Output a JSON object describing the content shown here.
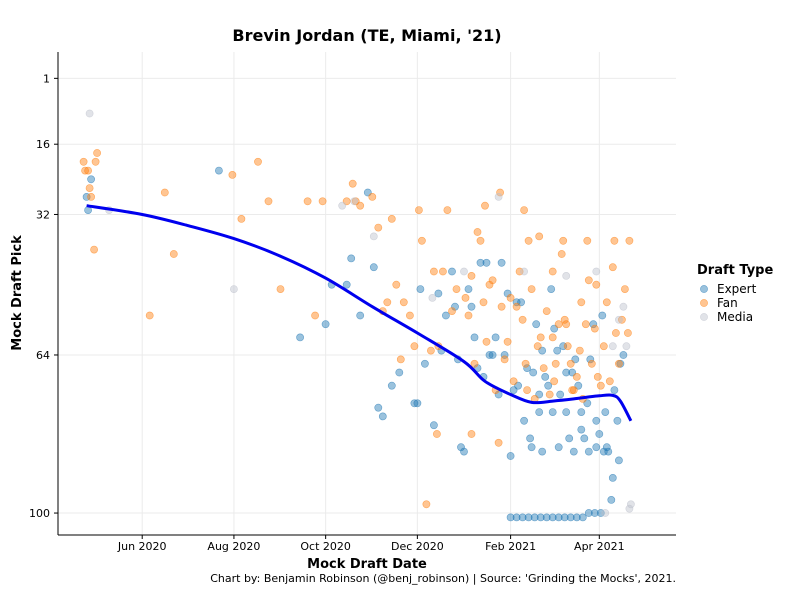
{
  "chart_data": {
    "type": "scatter",
    "title": "Brevin Jordan (TE, Miami, '21)",
    "xlabel": "Mock Draft Date",
    "ylabel": "Mock Draft Pick",
    "caption": "Chart by: Benjamin Robinson (@benj_robinson) | Source: 'Grinding the Mocks', 2021.",
    "xlim": [
      "2020-04-06",
      "2021-05-22"
    ],
    "ylim": [
      105,
      -5
    ],
    "y_ticks": [
      1,
      16,
      32,
      64,
      100
    ],
    "x_ticks": [
      {
        "date": "2020-06-01",
        "label": "Jun 2020"
      },
      {
        "date": "2020-08-01",
        "label": "Aug 2020"
      },
      {
        "date": "2020-10-01",
        "label": "Oct 2020"
      },
      {
        "date": "2020-12-01",
        "label": "Dec 2020"
      },
      {
        "date": "2021-02-01",
        "label": "Feb 2021"
      },
      {
        "date": "2021-04-01",
        "label": "Apr 2021"
      }
    ],
    "grid": true,
    "legend": {
      "title": "Draft Type",
      "position": "right"
    },
    "series": [
      {
        "name": "Expert",
        "color": "#1f77b4",
        "points": [
          [
            "2020-04-25",
            28
          ],
          [
            "2020-04-26",
            31
          ],
          [
            "2020-04-28",
            24
          ],
          [
            "2020-07-22",
            22
          ],
          [
            "2020-09-14",
            60
          ],
          [
            "2020-10-01",
            57
          ],
          [
            "2020-10-05",
            48
          ],
          [
            "2020-10-15",
            48
          ],
          [
            "2020-10-18",
            42
          ],
          [
            "2020-10-24",
            55
          ],
          [
            "2020-10-29",
            27
          ],
          [
            "2020-11-02",
            44
          ],
          [
            "2020-11-05",
            76
          ],
          [
            "2020-11-08",
            78
          ],
          [
            "2020-11-14",
            71
          ],
          [
            "2020-11-19",
            68
          ],
          [
            "2020-11-29",
            75
          ],
          [
            "2020-12-01",
            75
          ],
          [
            "2020-12-03",
            49
          ],
          [
            "2020-12-06",
            66
          ],
          [
            "2020-12-12",
            80
          ],
          [
            "2020-12-15",
            50
          ],
          [
            "2020-12-17",
            63
          ],
          [
            "2020-12-20",
            55
          ],
          [
            "2020-12-24",
            45
          ],
          [
            "2020-12-26",
            53
          ],
          [
            "2020-12-28",
            65
          ],
          [
            "2020-12-30",
            85
          ],
          [
            "2021-01-01",
            86
          ],
          [
            "2021-01-04",
            49
          ],
          [
            "2021-01-06",
            53
          ],
          [
            "2021-01-08",
            60
          ],
          [
            "2021-01-10",
            67
          ],
          [
            "2021-01-12",
            43
          ],
          [
            "2021-01-14",
            69
          ],
          [
            "2021-01-16",
            43
          ],
          [
            "2021-01-18",
            64
          ],
          [
            "2021-01-20",
            64
          ],
          [
            "2021-01-22",
            60
          ],
          [
            "2021-01-24",
            73
          ],
          [
            "2021-01-26",
            43
          ],
          [
            "2021-01-28",
            64
          ],
          [
            "2021-01-30",
            50
          ],
          [
            "2021-02-01",
            87
          ],
          [
            "2021-02-03",
            72
          ],
          [
            "2021-02-05",
            52
          ],
          [
            "2021-02-06",
            71
          ],
          [
            "2021-02-08",
            52
          ],
          [
            "2021-02-10",
            79
          ],
          [
            "2021-02-12",
            67
          ],
          [
            "2021-02-14",
            83
          ],
          [
            "2021-02-16",
            68
          ],
          [
            "2021-02-18",
            57
          ],
          [
            "2021-02-20",
            73
          ],
          [
            "2021-02-22",
            63
          ],
          [
            "2021-02-24",
            69
          ],
          [
            "2021-02-26",
            71
          ],
          [
            "2021-02-28",
            49
          ],
          [
            "2021-03-02",
            58
          ],
          [
            "2021-03-04",
            63
          ],
          [
            "2021-03-06",
            73
          ],
          [
            "2021-03-08",
            62
          ],
          [
            "2021-03-10",
            68
          ],
          [
            "2021-03-12",
            83
          ],
          [
            "2021-03-14",
            68
          ],
          [
            "2021-03-16",
            65
          ],
          [
            "2021-03-18",
            71
          ],
          [
            "2021-03-20",
            81
          ],
          [
            "2021-03-22",
            83
          ],
          [
            "2021-03-24",
            75
          ],
          [
            "2021-03-26",
            65
          ],
          [
            "2021-03-28",
            57
          ],
          [
            "2021-03-30",
            79
          ],
          [
            "2021-04-01",
            82
          ],
          [
            "2021-04-03",
            55
          ],
          [
            "2021-04-05",
            77
          ],
          [
            "2021-04-07",
            86
          ],
          [
            "2021-04-09",
            97
          ],
          [
            "2021-04-11",
            72
          ],
          [
            "2021-04-13",
            79
          ],
          [
            "2021-04-15",
            66
          ],
          [
            "2021-04-17",
            64
          ],
          [
            "2021-02-01",
            101
          ],
          [
            "2021-02-05",
            101
          ],
          [
            "2021-02-09",
            101
          ],
          [
            "2021-02-13",
            101
          ],
          [
            "2021-02-17",
            101
          ],
          [
            "2021-02-21",
            101
          ],
          [
            "2021-02-25",
            101
          ],
          [
            "2021-03-01",
            101
          ],
          [
            "2021-03-05",
            101
          ],
          [
            "2021-03-09",
            101
          ],
          [
            "2021-03-13",
            101
          ],
          [
            "2021-03-17",
            101
          ],
          [
            "2021-03-21",
            101
          ],
          [
            "2021-03-25",
            100
          ],
          [
            "2021-03-29",
            100
          ],
          [
            "2021-04-02",
            100
          ],
          [
            "2021-04-06",
            85
          ],
          [
            "2021-04-10",
            92
          ],
          [
            "2021-02-20",
            77
          ],
          [
            "2021-03-01",
            77
          ],
          [
            "2021-03-10",
            77
          ],
          [
            "2021-03-20",
            77
          ],
          [
            "2021-03-30",
            85
          ],
          [
            "2021-04-14",
            88
          ],
          [
            "2021-02-15",
            85
          ],
          [
            "2021-02-22",
            86
          ],
          [
            "2021-03-05",
            85
          ],
          [
            "2021-03-15",
            86
          ],
          [
            "2021-03-25",
            86
          ],
          [
            "2021-04-04",
            86
          ]
        ]
      },
      {
        "name": "Fan",
        "color": "#ff7f0e",
        "points": [
          [
            "2020-04-23",
            20
          ],
          [
            "2020-04-24",
            22
          ],
          [
            "2020-04-26",
            22
          ],
          [
            "2020-04-27",
            26
          ],
          [
            "2020-04-28",
            28
          ],
          [
            "2020-04-30",
            40
          ],
          [
            "2020-05-01",
            20
          ],
          [
            "2020-05-02",
            18
          ],
          [
            "2020-06-06",
            55
          ],
          [
            "2020-06-16",
            27
          ],
          [
            "2020-06-22",
            41
          ],
          [
            "2020-07-31",
            23
          ],
          [
            "2020-08-06",
            33
          ],
          [
            "2020-08-17",
            20
          ],
          [
            "2020-08-24",
            29
          ],
          [
            "2020-09-01",
            49
          ],
          [
            "2020-09-19",
            29
          ],
          [
            "2020-09-24",
            55
          ],
          [
            "2020-09-29",
            29
          ],
          [
            "2020-10-15",
            29
          ],
          [
            "2020-10-19",
            25
          ],
          [
            "2020-10-21",
            29
          ],
          [
            "2020-10-24",
            30
          ],
          [
            "2020-11-01",
            28
          ],
          [
            "2020-11-05",
            35
          ],
          [
            "2020-11-08",
            54
          ],
          [
            "2020-11-11",
            52
          ],
          [
            "2020-11-14",
            33
          ],
          [
            "2020-11-17",
            48
          ],
          [
            "2020-11-20",
            65
          ],
          [
            "2020-11-22",
            52
          ],
          [
            "2020-11-26",
            55
          ],
          [
            "2020-11-29",
            62
          ],
          [
            "2020-12-02",
            31
          ],
          [
            "2020-12-04",
            38
          ],
          [
            "2020-12-07",
            98
          ],
          [
            "2020-12-10",
            63
          ],
          [
            "2020-12-12",
            45
          ],
          [
            "2020-12-15",
            62
          ],
          [
            "2020-12-18",
            45
          ],
          [
            "2020-12-21",
            31
          ],
          [
            "2020-12-24",
            54
          ],
          [
            "2020-12-27",
            49
          ],
          [
            "2021-01-02",
            51
          ],
          [
            "2021-01-04",
            55
          ],
          [
            "2021-01-06",
            46
          ],
          [
            "2021-01-08",
            66
          ],
          [
            "2021-01-10",
            36
          ],
          [
            "2021-01-12",
            38
          ],
          [
            "2021-01-14",
            52
          ],
          [
            "2021-01-16",
            61
          ],
          [
            "2021-01-18",
            48
          ],
          [
            "2021-01-20",
            47
          ],
          [
            "2021-01-22",
            72
          ],
          [
            "2021-01-24",
            84
          ],
          [
            "2021-01-26",
            53
          ],
          [
            "2021-01-28",
            65
          ],
          [
            "2021-01-30",
            61
          ],
          [
            "2021-02-01",
            51
          ],
          [
            "2021-02-03",
            70
          ],
          [
            "2021-02-05",
            53
          ],
          [
            "2021-02-07",
            45
          ],
          [
            "2021-02-09",
            56
          ],
          [
            "2021-02-11",
            66
          ],
          [
            "2021-02-13",
            38
          ],
          [
            "2021-02-15",
            49
          ],
          [
            "2021-02-17",
            74
          ],
          [
            "2021-02-19",
            62
          ],
          [
            "2021-02-21",
            60
          ],
          [
            "2021-02-23",
            67
          ],
          [
            "2021-02-25",
            54
          ],
          [
            "2021-02-27",
            73
          ],
          [
            "2021-03-01",
            60
          ],
          [
            "2021-03-03",
            66
          ],
          [
            "2021-03-05",
            57
          ],
          [
            "2021-03-07",
            41
          ],
          [
            "2021-03-09",
            56
          ],
          [
            "2021-03-11",
            62
          ],
          [
            "2021-03-13",
            66
          ],
          [
            "2021-03-15",
            72
          ],
          [
            "2021-03-17",
            69
          ],
          [
            "2021-03-19",
            63
          ],
          [
            "2021-03-21",
            74
          ],
          [
            "2021-03-23",
            57
          ],
          [
            "2021-03-25",
            47
          ],
          [
            "2021-03-27",
            66
          ],
          [
            "2021-03-29",
            58
          ],
          [
            "2021-03-31",
            69
          ],
          [
            "2021-04-02",
            71
          ],
          [
            "2021-04-04",
            62
          ],
          [
            "2021-04-06",
            52
          ],
          [
            "2021-04-08",
            70
          ],
          [
            "2021-04-10",
            44
          ],
          [
            "2021-04-12",
            59
          ],
          [
            "2021-04-14",
            66
          ],
          [
            "2021-04-16",
            56
          ],
          [
            "2021-04-18",
            49
          ],
          [
            "2021-04-20",
            59
          ],
          [
            "2021-01-15",
            30
          ],
          [
            "2021-01-25",
            27
          ],
          [
            "2021-02-10",
            31
          ],
          [
            "2021-02-20",
            37
          ],
          [
            "2021-03-01",
            45
          ],
          [
            "2021-03-10",
            57
          ],
          [
            "2021-03-20",
            52
          ],
          [
            "2021-03-30",
            48
          ],
          [
            "2021-04-11",
            38
          ],
          [
            "2021-04-21",
            38
          ],
          [
            "2021-03-08",
            38
          ],
          [
            "2021-03-24",
            38
          ],
          [
            "2020-12-14",
            82
          ],
          [
            "2021-01-06",
            82
          ],
          [
            "2021-02-12",
            72
          ],
          [
            "2021-03-02",
            70
          ],
          [
            "2021-03-14",
            72
          ]
        ]
      },
      {
        "name": "Media",
        "color": "#bcc0cc",
        "points": [
          [
            "2020-04-27",
            9
          ],
          [
            "2020-05-10",
            31
          ],
          [
            "2020-08-01",
            49
          ],
          [
            "2020-10-12",
            30
          ],
          [
            "2020-10-20",
            29
          ],
          [
            "2020-11-02",
            37
          ],
          [
            "2020-12-11",
            51
          ],
          [
            "2021-01-01",
            45
          ],
          [
            "2021-01-24",
            28
          ],
          [
            "2021-02-10",
            45
          ],
          [
            "2021-03-10",
            46
          ],
          [
            "2021-03-30",
            45
          ],
          [
            "2021-04-05",
            100
          ],
          [
            "2021-04-10",
            62
          ],
          [
            "2021-04-17",
            53
          ],
          [
            "2021-04-19",
            62
          ],
          [
            "2021-04-21",
            99
          ],
          [
            "2021-04-22",
            98
          ],
          [
            "2021-04-14",
            56
          ]
        ]
      }
    ],
    "trend": {
      "color": "#0000ee",
      "points": [
        [
          "2020-04-25",
          30
        ],
        [
          "2020-06-01",
          32
        ],
        [
          "2020-07-01",
          34.5
        ],
        [
          "2020-08-01",
          37.5
        ],
        [
          "2020-09-01",
          41.5
        ],
        [
          "2020-10-01",
          46.5
        ],
        [
          "2020-11-01",
          53
        ],
        [
          "2020-12-01",
          59
        ],
        [
          "2021-01-01",
          65.5
        ],
        [
          "2021-01-15",
          70
        ],
        [
          "2021-02-01",
          73
        ],
        [
          "2021-02-15",
          74.8
        ],
        [
          "2021-03-01",
          74.5
        ],
        [
          "2021-03-15",
          74
        ],
        [
          "2021-04-01",
          73.3
        ],
        [
          "2021-04-10",
          73.2
        ],
        [
          "2021-04-15",
          74.5
        ],
        [
          "2021-04-22",
          79
        ]
      ]
    }
  }
}
